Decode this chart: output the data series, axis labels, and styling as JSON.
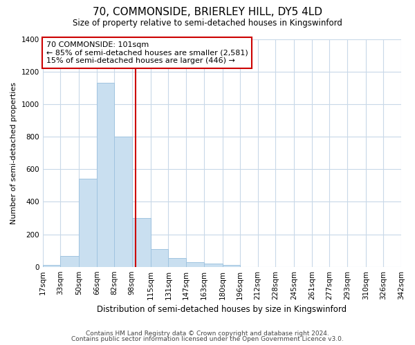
{
  "title": "70, COMMONSIDE, BRIERLEY HILL, DY5 4LD",
  "subtitle": "Size of property relative to semi-detached houses in Kingswinford",
  "xlabel": "Distribution of semi-detached houses by size in Kingswinford",
  "ylabel": "Number of semi-detached properties",
  "footer1": "Contains HM Land Registry data © Crown copyright and database right 2024.",
  "footer2": "Contains public sector information licensed under the Open Government Licence v3.0.",
  "annotation_line1": "70 COMMONSIDE: 101sqm",
  "annotation_line2": "← 85% of semi-detached houses are smaller (2,581)",
  "annotation_line3": "15% of semi-detached houses are larger (446) →",
  "property_size": 101,
  "bar_color": "#c9dff0",
  "bar_edge_color": "#a0c4e0",
  "vline_color": "#cc0000",
  "annotation_box_edge_color": "#cc0000",
  "bins": [
    17,
    33,
    50,
    66,
    82,
    98,
    115,
    131,
    147,
    163,
    180,
    196,
    212,
    228,
    245,
    261,
    277,
    293,
    310,
    326,
    342
  ],
  "bin_labels": [
    "17sqm",
    "33sqm",
    "50sqm",
    "66sqm",
    "82sqm",
    "98sqm",
    "115sqm",
    "131sqm",
    "147sqm",
    "163sqm",
    "180sqm",
    "196sqm",
    "212sqm",
    "228sqm",
    "245sqm",
    "261sqm",
    "277sqm",
    "293sqm",
    "310sqm",
    "326sqm",
    "342sqm"
  ],
  "counts": [
    10,
    65,
    540,
    1130,
    800,
    300,
    110,
    55,
    30,
    18,
    10,
    0,
    0,
    0,
    0,
    0,
    0,
    0,
    0,
    0
  ],
  "ylim": [
    0,
    1400
  ],
  "yticks": [
    0,
    200,
    400,
    600,
    800,
    1000,
    1200,
    1400
  ],
  "background_color": "#ffffff",
  "grid_color": "#c8d8e8"
}
